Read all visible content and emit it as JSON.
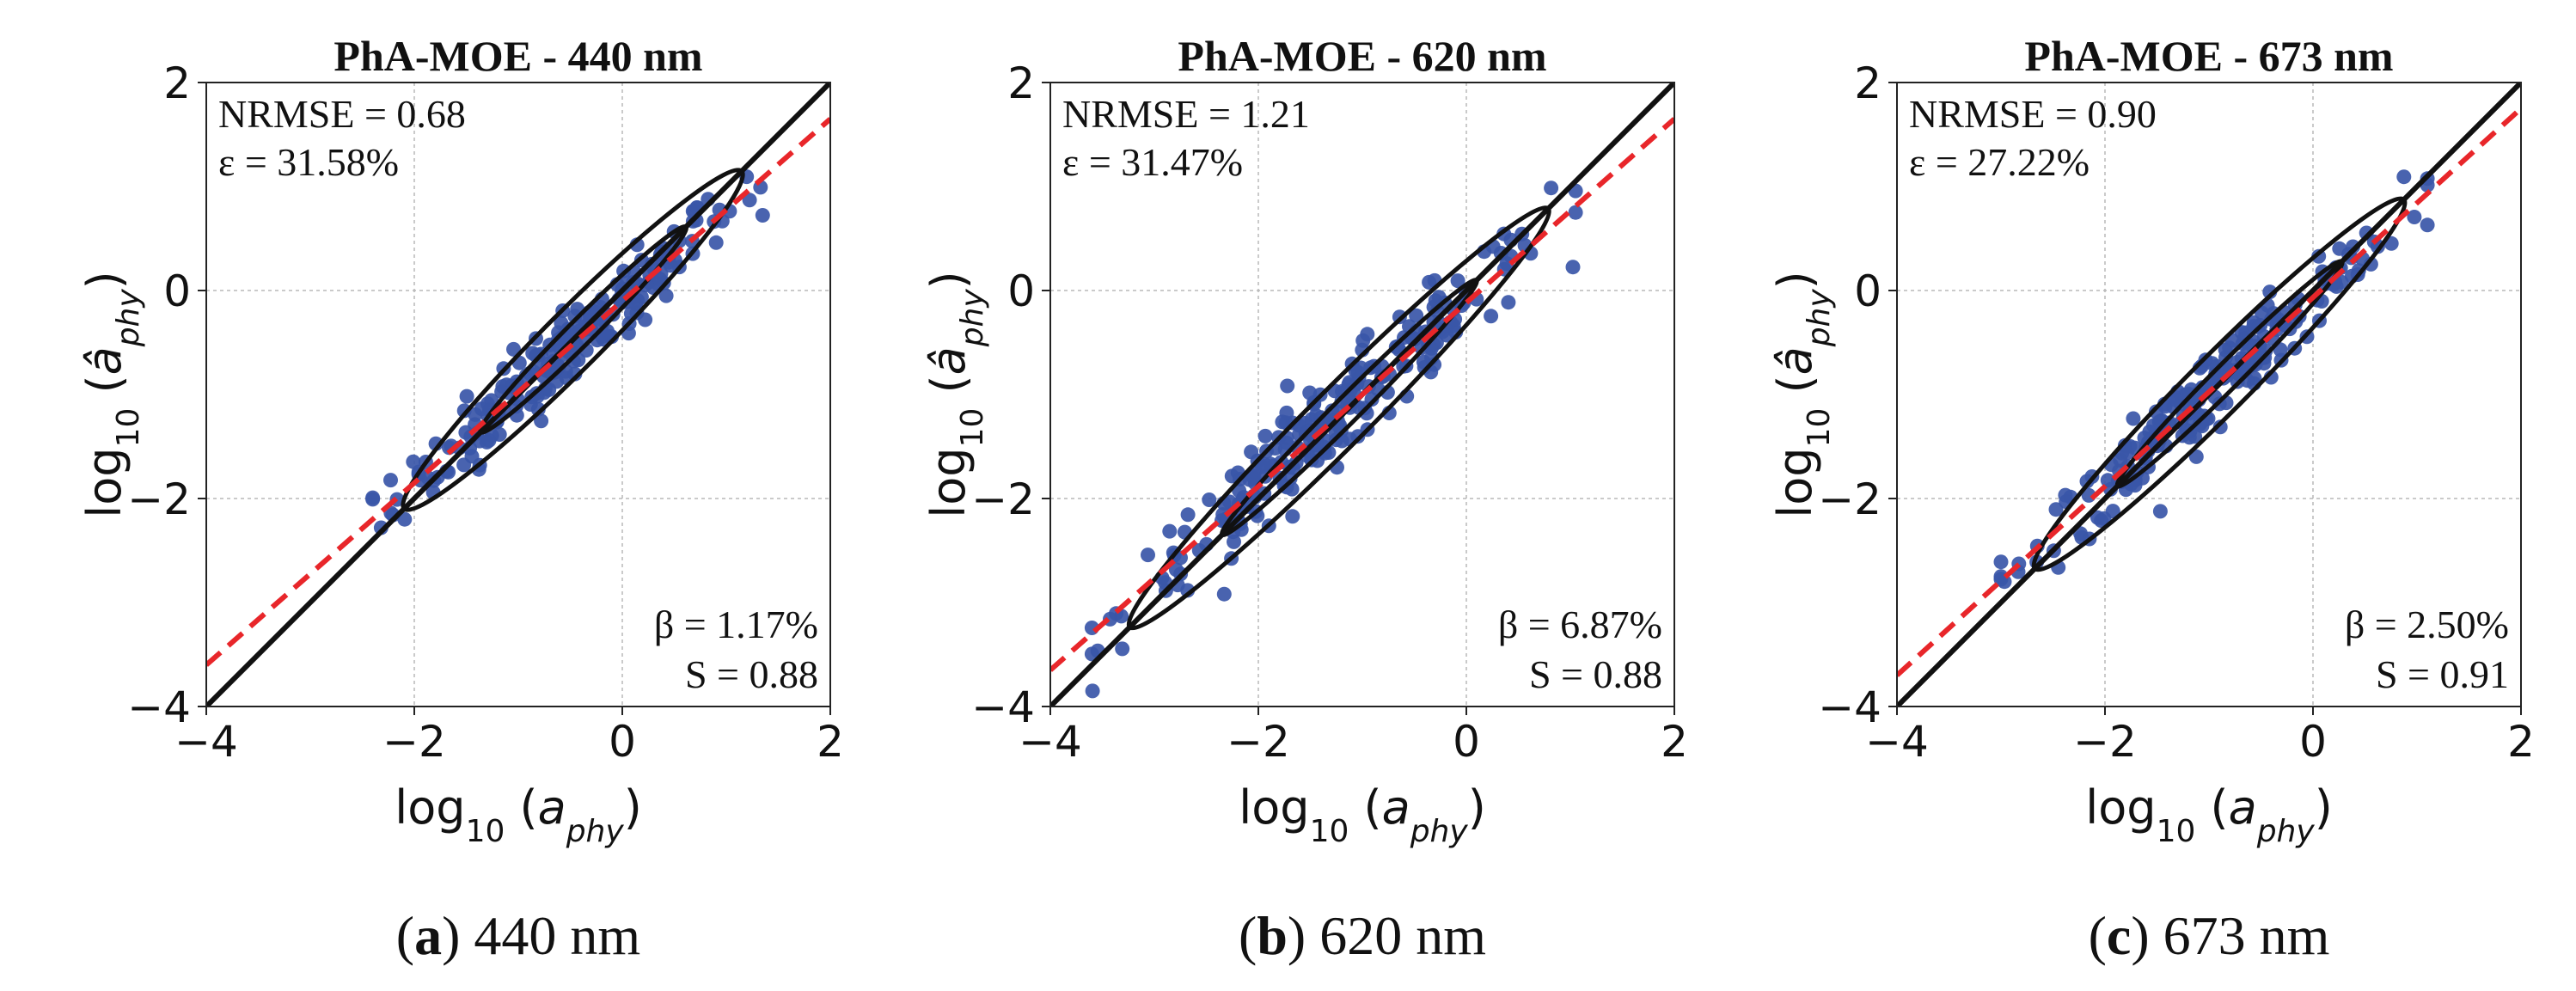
{
  "chart_data": [
    {
      "type": "scatter",
      "title": "PhA-MOE - 440 nm",
      "xlabel": "log10 (a_phy)",
      "ylabel": "log10 (â_phy)",
      "xlim": [
        -4,
        2
      ],
      "ylim": [
        -4,
        2
      ],
      "xticks": [
        "−4",
        "−2",
        "0",
        "2"
      ],
      "yticks": [
        "−4",
        "−2",
        "0",
        "2"
      ],
      "grid": true,
      "stats_top": [
        "NRMSE = 0.68",
        "ε = 31.58%"
      ],
      "stats_bottom": [
        "β = 1.17%",
        "S = 0.88"
      ],
      "caption_letter": "a",
      "caption_text": "440 nm",
      "one_to_one_line": [
        [
          -4,
          -4
        ],
        [
          2,
          2
        ]
      ],
      "fit_line": [
        [
          -4,
          -3.6
        ],
        [
          2,
          1.65
        ]
      ],
      "point_range": [
        -2.4,
        1.35
      ],
      "point_spread": 0.18,
      "points_count": 220,
      "colors": {
        "points": "#3a56a8",
        "one_to_one": "#111111",
        "fit": "#e8262a",
        "contour": "#111111"
      }
    },
    {
      "type": "scatter",
      "title": "PhA-MOE - 620 nm",
      "xlabel": "log10 (a_phy)",
      "ylabel": "log10 (â_phy)",
      "xlim": [
        -4,
        2
      ],
      "ylim": [
        -4,
        2
      ],
      "xticks": [
        "−4",
        "−2",
        "0",
        "2"
      ],
      "yticks": [
        "−4",
        "−2",
        "0",
        "2"
      ],
      "grid": true,
      "stats_top": [
        "NRMSE = 1.21",
        "ε = 31.47%"
      ],
      "stats_bottom": [
        "β = 6.87%",
        "S = 0.88"
      ],
      "caption_letter": "b",
      "caption_text": "620 nm",
      "one_to_one_line": [
        [
          -4,
          -4
        ],
        [
          2,
          2
        ]
      ],
      "fit_line": [
        [
          -4,
          -3.65
        ],
        [
          2,
          1.65
        ]
      ],
      "point_range": [
        -3.6,
        1.05
      ],
      "point_spread": 0.22,
      "points_count": 240,
      "colors": {
        "points": "#3a56a8",
        "one_to_one": "#111111",
        "fit": "#e8262a",
        "contour": "#111111"
      }
    },
    {
      "type": "scatter",
      "title": "PhA-MOE - 673 nm",
      "xlabel": "log10 (a_phy)",
      "ylabel": "log10 (â_phy)",
      "xlim": [
        -4,
        2
      ],
      "ylim": [
        -4,
        2
      ],
      "xticks": [
        "−4",
        "−2",
        "0",
        "2"
      ],
      "yticks": [
        "−4",
        "−2",
        "0",
        "2"
      ],
      "grid": true,
      "stats_top": [
        "NRMSE = 0.90",
        "ε = 27.22%"
      ],
      "stats_bottom": [
        "β = 2.50%",
        "S = 0.91"
      ],
      "caption_letter": "c",
      "caption_text": "673 nm",
      "one_to_one_line": [
        [
          -4,
          -4
        ],
        [
          2,
          2
        ]
      ],
      "fit_line": [
        [
          -4,
          -3.7
        ],
        [
          2,
          1.75
        ]
      ],
      "point_range": [
        -3.0,
        1.1
      ],
      "point_spread": 0.18,
      "points_count": 230,
      "colors": {
        "points": "#3a56a8",
        "one_to_one": "#111111",
        "fit": "#e8262a",
        "contour": "#111111"
      }
    }
  ]
}
